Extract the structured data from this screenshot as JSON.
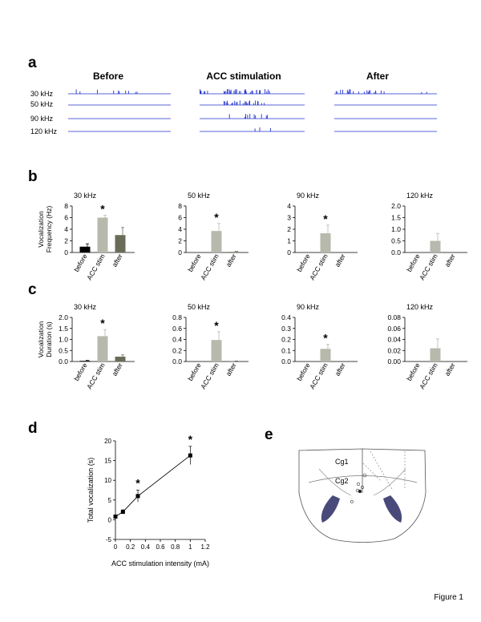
{
  "figure_label": "Figure 1",
  "panel_a": {
    "letter": "a",
    "col_titles": [
      "Before",
      "ACC stimulation",
      "After"
    ],
    "row_labels": [
      "30 kHz",
      "50 kHz",
      "90 kHz",
      "120 kHz"
    ],
    "trace_color": "#2233cc"
  },
  "panel_b": {
    "letter": "b"
  },
  "panel_c": {
    "letter": "c"
  },
  "panel_d": {
    "letter": "d"
  },
  "panel_e": {
    "letter": "e",
    "labels": [
      "Cg1",
      "Cg2"
    ],
    "region_color": "#4a4a7a"
  },
  "chart_data": [
    {
      "id": "b-30",
      "type": "bar",
      "title": "30 kHz",
      "ylabel": "Vocalization Frequency (Hz)",
      "categories": [
        "before",
        "ACC stim",
        "after"
      ],
      "values": [
        1.0,
        6.0,
        3.0
      ],
      "errors": [
        0.5,
        0.4,
        1.3
      ],
      "colors": [
        "#000000",
        "#b7b9ac",
        "#6a6c58"
      ],
      "significant": [
        false,
        true,
        false
      ],
      "ylim": [
        0,
        8
      ],
      "yticks": [
        "0",
        "2",
        "4",
        "6",
        "8"
      ]
    },
    {
      "id": "b-50",
      "type": "bar",
      "title": "50 kHz",
      "ylabel": "",
      "categories": [
        "before",
        "ACC stim",
        "after"
      ],
      "values": [
        0,
        3.7,
        0.1
      ],
      "errors": [
        0,
        1.3,
        0.1
      ],
      "colors": [
        "#000000",
        "#b7b9ac",
        "#6a6c58"
      ],
      "significant": [
        false,
        true,
        false
      ],
      "ylim": [
        0,
        8
      ],
      "yticks": [
        "0",
        "2",
        "4",
        "6",
        "8"
      ]
    },
    {
      "id": "b-90",
      "type": "bar",
      "title": "90 kHz",
      "ylabel": "",
      "categories": [
        "before",
        "ACC stim",
        "after"
      ],
      "values": [
        0,
        1.65,
        0
      ],
      "errors": [
        0,
        0.7,
        0
      ],
      "colors": [
        "#000000",
        "#b7b9ac",
        "#6a6c58"
      ],
      "significant": [
        false,
        true,
        false
      ],
      "ylim": [
        0,
        4
      ],
      "yticks": [
        "0",
        "1",
        "2",
        "3",
        "4"
      ]
    },
    {
      "id": "b-120",
      "type": "bar",
      "title": "120 kHz",
      "ylabel": "",
      "categories": [
        "before",
        "ACC stim",
        "after"
      ],
      "values": [
        0,
        0.5,
        0
      ],
      "errors": [
        0,
        0.32,
        0
      ],
      "colors": [
        "#000000",
        "#b7b9ac",
        "#6a6c58"
      ],
      "significant": [
        false,
        false,
        false
      ],
      "ylim": [
        0,
        2.0
      ],
      "yticks": [
        "0.0",
        "0.5",
        "1.0",
        "1.5",
        "2.0"
      ]
    },
    {
      "id": "c-30",
      "type": "bar",
      "title": "30 kHz",
      "ylabel": "Vocalization Duration (s)",
      "categories": [
        "before",
        "ACC stim",
        "after"
      ],
      "values": [
        0.03,
        1.15,
        0.22
      ],
      "errors": [
        0.02,
        0.3,
        0.08
      ],
      "colors": [
        "#000000",
        "#b7b9ac",
        "#6a6c58"
      ],
      "significant": [
        false,
        true,
        false
      ],
      "ylim": [
        0,
        2.0
      ],
      "yticks": [
        "0.0",
        "0.5",
        "1.0",
        "1.5",
        "2.0"
      ]
    },
    {
      "id": "c-50",
      "type": "bar",
      "title": "50 kHz",
      "ylabel": "",
      "categories": [
        "before",
        "ACC stim",
        "after"
      ],
      "values": [
        0,
        0.39,
        0.005
      ],
      "errors": [
        0,
        0.15,
        0.005
      ],
      "colors": [
        "#000000",
        "#b7b9ac",
        "#6a6c58"
      ],
      "significant": [
        false,
        true,
        false
      ],
      "ylim": [
        0,
        0.8
      ],
      "yticks": [
        "0.0",
        "0.2",
        "0.4",
        "0.6",
        "0.8"
      ]
    },
    {
      "id": "c-90",
      "type": "bar",
      "title": "90 kHz",
      "ylabel": "",
      "categories": [
        "before",
        "ACC stim",
        "after"
      ],
      "values": [
        0,
        0.115,
        0
      ],
      "errors": [
        0,
        0.04,
        0
      ],
      "colors": [
        "#000000",
        "#b7b9ac",
        "#6a6c58"
      ],
      "significant": [
        false,
        true,
        false
      ],
      "ylim": [
        0,
        0.4
      ],
      "yticks": [
        "0.0",
        "0.1",
        "0.2",
        "0.3",
        "0.4"
      ]
    },
    {
      "id": "c-120",
      "type": "bar",
      "title": "120 kHz",
      "ylabel": "",
      "categories": [
        "before",
        "ACC stim",
        "after"
      ],
      "values": [
        0,
        0.024,
        0
      ],
      "errors": [
        0,
        0.017,
        0
      ],
      "colors": [
        "#000000",
        "#b7b9ac",
        "#6a6c58"
      ],
      "significant": [
        false,
        false,
        false
      ],
      "ylim": [
        0,
        0.08
      ],
      "yticks": [
        "0.00",
        "0.02",
        "0.04",
        "0.06",
        "0.08"
      ]
    },
    {
      "id": "d",
      "type": "line",
      "title": "",
      "xlabel": "ACC stimulation intensity (mA)",
      "ylabel": "Total vocalization (s)",
      "x": [
        0,
        0.1,
        0.3,
        1.0
      ],
      "y": [
        0.8,
        2.0,
        6.0,
        16.3
      ],
      "errors": [
        0.3,
        0.5,
        1.5,
        2.3
      ],
      "significant": [
        false,
        false,
        true,
        true
      ],
      "xlim": [
        0,
        1.2
      ],
      "ylim": [
        -5,
        20
      ],
      "xticks": [
        "0",
        "0.2",
        "0.4",
        "0.6",
        "0.8",
        "1",
        "1.2"
      ],
      "yticks": [
        "-5",
        "0",
        "5",
        "10",
        "15",
        "20"
      ]
    }
  ]
}
